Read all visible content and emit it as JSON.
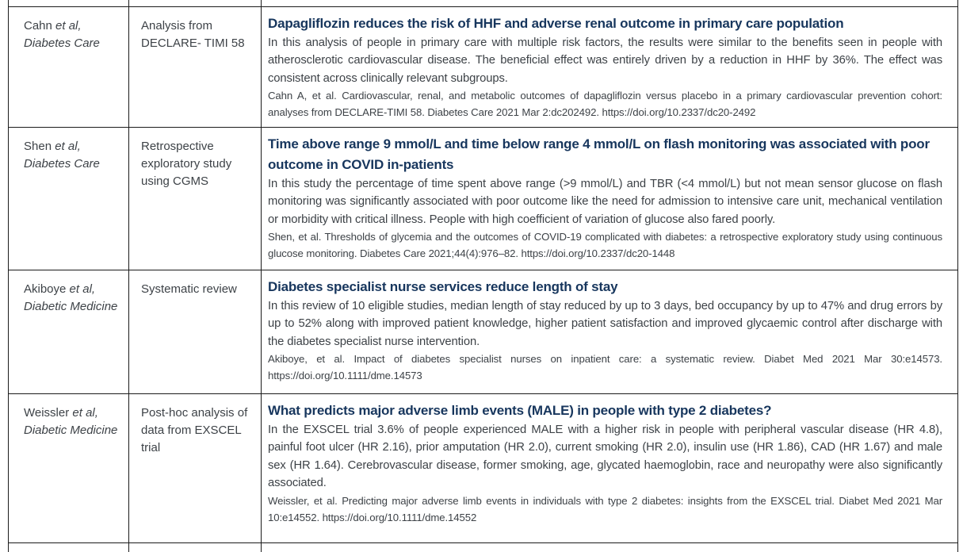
{
  "styles": {
    "border_color": "#1b1b1b",
    "headline_color": "#17365d",
    "body_text_color": "#3d4247",
    "background": "#ffffff"
  },
  "table": {
    "columns": [
      "authors_journal",
      "study_type",
      "summary"
    ],
    "rows": [
      {
        "author_name": "Cahn",
        "author_etal": "et al,",
        "journal": "Diabetes Care",
        "study_type": "Analysis from DECLARE- TIMI 58",
        "headline": "Dapagliflozin reduces the risk of HHF and adverse renal outcome in primary care population",
        "summary": "In this analysis of people in primary care with multiple risk factors, the results were similar to the benefits seen in people with atherosclerotic cardiovascular disease. The beneficial effect was entirely driven by a reduction in HHF by 36%. The effect was consistent across clinically relevant subgroups.",
        "citation": "Cahn A, et al. Cardiovascular, renal, and metabolic outcomes of dapagliflozin versus placebo in a primary cardiovascular prevention cohort: analyses from DECLARE-TIMI 58. Diabetes Care 2021 Mar 2:dc202492. https://doi.org/10.2337/dc20-2492"
      },
      {
        "author_name": "Shen",
        "author_etal": "et al,",
        "journal": "Diabetes Care",
        "study_type": "Retrospective exploratory study using CGMS",
        "headline": "Time above range 9 mmol/L and time below range 4 mmol/L on flash monitoring was associated with poor outcome in COVID in-patients",
        "summary": "In this study the percentage of time spent above range (>9 mmol/L) and TBR (<4 mmol/L) but not mean sensor glucose on flash monitoring was significantly associated with poor outcome like the need for admission to intensive care unit, mechanical ventilation or morbidity with critical illness. People with high coefficient of variation of glucose also fared poorly.",
        "citation": "Shen, et al. Thresholds of glycemia and the outcomes of COVID-19 complicated with diabetes: a retrospective exploratory study using continuous glucose monitoring. Diabetes Care 2021;44(4):976–82. https://doi.org/10.2337/dc20-1448"
      },
      {
        "author_name": "Akiboye",
        "author_etal": "et al,",
        "journal": "Diabetic Medicine",
        "study_type": "Systematic review",
        "headline": "Diabetes specialist nurse services reduce length of stay",
        "summary": "In this review of 10 eligible studies, median length of stay reduced by up to 3 days, bed occupancy by up to 47% and drug errors by up to 52% along with improved patient knowledge, higher patient satisfaction and improved glycaemic control after discharge with the diabetes specialist nurse intervention.",
        "citation": "Akiboye, et al. Impact of diabetes specialist nurses on inpatient care: a systematic review. Diabet Med 2021 Mar 30:e14573. https://doi.org/10.1111/dme.14573"
      },
      {
        "author_name": "Weissler",
        "author_etal": "et al,",
        "journal": "Diabetic Medicine",
        "study_type": "Post-hoc analysis of data from EXSCEL trial",
        "headline": "What predicts major adverse limb events (MALE) in people with type 2 diabetes?",
        "summary": "In the EXSCEL trial 3.6% of people experienced MALE with a higher risk in people with peripheral vascular disease (HR 4.8), painful foot ulcer (HR 2.16), prior amputation (HR 2.0), current smoking (HR 2.0), insulin use (HR 1.86), CAD (HR 1.67) and male sex (HR 1.64). Cerebrovascular disease, former smoking, age, glycated haemoglobin, race and neuropathy were also significantly associated.",
        "citation": "Weissler, et al. Predicting major adverse limb events in individuals with type 2 diabetes: insights from the EXSCEL trial. Diabet Med 2021 Mar 10:e14552. https://doi.org/10.1111/dme.14552"
      }
    ]
  }
}
